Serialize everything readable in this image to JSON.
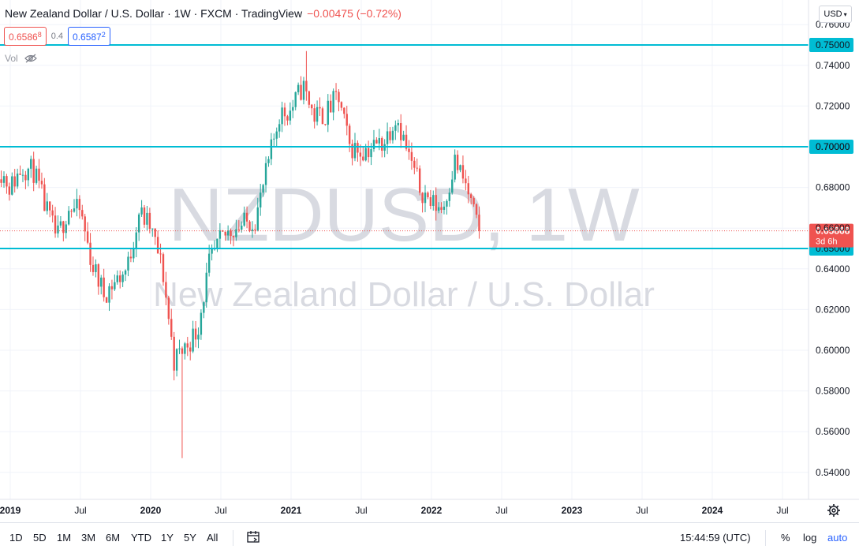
{
  "header": {
    "title": "New Zealand Dollar / U.S. Dollar · 1W · FXCM · TradingView",
    "change": "−0.00475 (−0.72%)"
  },
  "quote": {
    "sell_main": "0.6586",
    "sell_sup": "8",
    "spread": "0.4",
    "buy_main": "0.6587",
    "buy_sup": "2"
  },
  "vol_label": "Vol",
  "currency_button": "USD",
  "watermark": {
    "line1": "NZDUSD, 1W",
    "line2": "New Zealand Dollar / U.S. Dollar"
  },
  "colors": {
    "up": "#26a69a",
    "down": "#ef5350",
    "hline": "#00bcd4",
    "last_price": "#ef5350",
    "accent": "#2962ff"
  },
  "price_axis": {
    "ticks": [
      "0.76000",
      "0.74000",
      "0.72000",
      "0.70000",
      "0.68000",
      "0.66000",
      "0.64000",
      "0.62000",
      "0.60000",
      "0.58000",
      "0.56000",
      "0.54000"
    ],
    "hline_labels": [
      "0.75000",
      "0.70000",
      "0.65000"
    ],
    "last_price": "0.65868",
    "countdown": "3d 6h"
  },
  "time_axis": {
    "labels": [
      "2019",
      "Jul",
      "2020",
      "Jul",
      "2021",
      "Jul",
      "2022",
      "Jul",
      "2023",
      "Jul",
      "2024",
      "Jul"
    ]
  },
  "toolbar": {
    "timeframes": [
      "1D",
      "5D",
      "1M",
      "3M",
      "6M",
      "YTD",
      "1Y",
      "5Y",
      "All"
    ],
    "time": "15:44:59 (UTC)",
    "percent": "%",
    "log": "log",
    "auto": "auto"
  },
  "chart_data": {
    "type": "candlestick",
    "timeframe": "1W",
    "ylim": [
      0.532,
      0.765
    ],
    "x_range": [
      "2019-01",
      "2024-10"
    ],
    "grid": true,
    "horizontal_lines": [
      0.75,
      0.7,
      0.65
    ],
    "last_price": 0.65868,
    "series": [
      {
        "name": "NZDUSD",
        "points": [
          {
            "date": "2018-12",
            "close": 0.69
          },
          {
            "date": "2019-01",
            "close": 0.68
          },
          {
            "date": "2019-02",
            "close": 0.69
          },
          {
            "date": "2019-03",
            "close": 0.688
          },
          {
            "date": "2019-04",
            "close": 0.67
          },
          {
            "date": "2019-05",
            "close": 0.655
          },
          {
            "date": "2019-06",
            "close": 0.67
          },
          {
            "date": "2019-07",
            "close": 0.668
          },
          {
            "date": "2019-08",
            "close": 0.642
          },
          {
            "date": "2019-09",
            "close": 0.628
          },
          {
            "date": "2019-10",
            "close": 0.634
          },
          {
            "date": "2019-11",
            "close": 0.64
          },
          {
            "date": "2019-12",
            "close": 0.668
          },
          {
            "date": "2020-01",
            "close": 0.66
          },
          {
            "date": "2020-02",
            "close": 0.64
          },
          {
            "date": "2020-03",
            "close": 0.595
          },
          {
            "date": "2020-04",
            "close": 0.602
          },
          {
            "date": "2020-05",
            "close": 0.61
          },
          {
            "date": "2020-06",
            "close": 0.642
          },
          {
            "date": "2020-07",
            "close": 0.654
          },
          {
            "date": "2020-08",
            "close": 0.66
          },
          {
            "date": "2020-09",
            "close": 0.662
          },
          {
            "date": "2020-10",
            "close": 0.665
          },
          {
            "date": "2020-11",
            "close": 0.69
          },
          {
            "date": "2020-12",
            "close": 0.716
          },
          {
            "date": "2021-01",
            "close": 0.718
          },
          {
            "date": "2021-02",
            "close": 0.73
          },
          {
            "date": "2021-03",
            "close": 0.715
          },
          {
            "date": "2021-04",
            "close": 0.716
          },
          {
            "date": "2021-05",
            "close": 0.725
          },
          {
            "date": "2021-06",
            "close": 0.7
          },
          {
            "date": "2021-07",
            "close": 0.698
          },
          {
            "date": "2021-08",
            "close": 0.7
          },
          {
            "date": "2021-09",
            "close": 0.703
          },
          {
            "date": "2021-10",
            "close": 0.716
          },
          {
            "date": "2021-11",
            "close": 0.696
          },
          {
            "date": "2021-12",
            "close": 0.68
          },
          {
            "date": "2022-01",
            "close": 0.672
          },
          {
            "date": "2022-02",
            "close": 0.67
          },
          {
            "date": "2022-03",
            "close": 0.693
          },
          {
            "date": "2022-04",
            "close": 0.68
          },
          {
            "date": "2022-05",
            "close": 0.6587
          }
        ]
      }
    ],
    "notable_low": {
      "date": "2020-03",
      "low": 0.547
    },
    "notable_high": {
      "date": "2021-02",
      "high": 0.747
    }
  }
}
